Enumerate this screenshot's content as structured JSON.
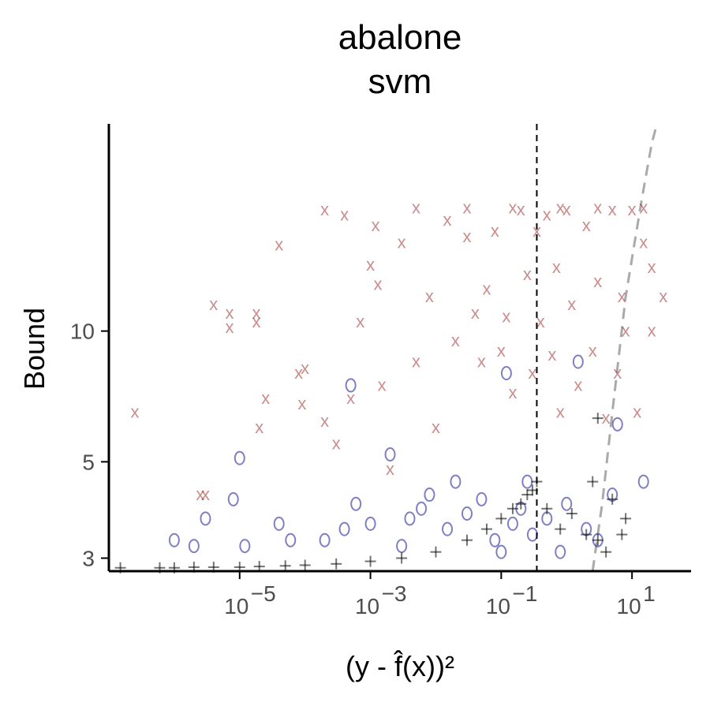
{
  "chart_data": {
    "type": "scatter",
    "title": "abalone",
    "subtitle": "svm",
    "xlabel": "(y - f̂(x))²",
    "ylabel": "Bound",
    "x_scale": "log10",
    "y_scale": "log",
    "xlim": [
      1e-07,
      80
    ],
    "ylim": [
      2.8,
      30
    ],
    "x_ticks": [
      1e-05,
      0.001,
      0.1,
      10
    ],
    "x_tick_labels": [
      "10",
      "10",
      "10",
      "10"
    ],
    "x_tick_exponents": [
      "−5",
      "−3",
      "−1",
      "1"
    ],
    "y_ticks": [
      3,
      5,
      10
    ],
    "y_tick_labels": [
      "3",
      "5",
      "10"
    ],
    "grid": false,
    "legend": "none",
    "reference_lines": [
      {
        "kind": "vertical",
        "x": 0.35,
        "style": "dashed",
        "color": "#000000"
      },
      {
        "kind": "curve",
        "style": "dashed",
        "color": "#aaaaaa",
        "points": [
          [
            2.5,
            2.8
          ],
          [
            3.5,
            4.0
          ],
          [
            5.0,
            6.5
          ],
          [
            8.0,
            12
          ],
          [
            14,
            20
          ],
          [
            20,
            27
          ],
          [
            24,
            30
          ]
        ]
      }
    ],
    "series": [
      {
        "marker": "x",
        "color": "#8b0000",
        "points": [
          [
            2.5e-07,
            6.5
          ],
          [
            4e-06,
            11.5
          ],
          [
            7e-06,
            10.2
          ],
          [
            7e-06,
            11
          ],
          [
            1.8e-05,
            11
          ],
          [
            1.8e-05,
            10.5
          ],
          [
            4e-05,
            15.8
          ],
          [
            8e-05,
            8
          ],
          [
            9e-05,
            6.8
          ],
          [
            2.5e-06,
            4.2
          ],
          [
            3e-06,
            4.2
          ],
          [
            2e-05,
            6
          ],
          [
            2.5e-05,
            7
          ],
          [
            0.0001,
            8.2
          ],
          [
            0.0002,
            6.2
          ],
          [
            0.0003,
            5.5
          ],
          [
            0.0005,
            7
          ],
          [
            0.0007,
            10.5
          ],
          [
            0.001,
            14.2
          ],
          [
            0.0013,
            12.8
          ],
          [
            0.0015,
            7.5
          ],
          [
            0.002,
            4.8
          ],
          [
            0.003,
            16
          ],
          [
            0.005,
            8.5
          ],
          [
            0.008,
            12
          ],
          [
            0.01,
            6
          ],
          [
            0.015,
            18
          ],
          [
            0.02,
            9.5
          ],
          [
            0.03,
            16.5
          ],
          [
            0.04,
            11
          ],
          [
            0.05,
            8.5
          ],
          [
            0.06,
            12.5
          ],
          [
            0.08,
            17
          ],
          [
            0.1,
            9
          ],
          [
            0.12,
            10.8
          ],
          [
            0.15,
            7.2
          ],
          [
            0.2,
            19
          ],
          [
            0.25,
            13.5
          ],
          [
            0.3,
            8
          ],
          [
            0.35,
            17
          ],
          [
            0.4,
            10.5
          ],
          [
            0.5,
            18.5
          ],
          [
            0.6,
            8.8
          ],
          [
            0.7,
            14
          ],
          [
            0.8,
            6.5
          ],
          [
            1.0,
            19
          ],
          [
            1.2,
            11.5
          ],
          [
            1.5,
            7.5
          ],
          [
            2,
            17.5
          ],
          [
            2.5,
            9
          ],
          [
            3,
            13
          ],
          [
            4,
            6.3
          ],
          [
            5,
            19
          ],
          [
            6,
            8
          ],
          [
            7,
            12
          ],
          [
            8,
            10
          ],
          [
            10,
            19
          ],
          [
            12,
            6.5
          ],
          [
            15,
            16
          ],
          [
            20,
            10
          ],
          [
            30,
            12
          ],
          [
            0.0002,
            19
          ],
          [
            0.0004,
            18.5
          ],
          [
            0.0012,
            17.5
          ],
          [
            0.005,
            19.2
          ],
          [
            0.03,
            19.2
          ],
          [
            0.15,
            19.2
          ],
          [
            0.8,
            19.2
          ],
          [
            3,
            19.2
          ],
          [
            15,
            19.2
          ],
          [
            20,
            14
          ]
        ]
      },
      {
        "marker": "o",
        "color": "#00008b",
        "points": [
          [
            1e-06,
            3.3
          ],
          [
            2e-06,
            3.2
          ],
          [
            3e-06,
            3.7
          ],
          [
            8e-06,
            4.1
          ],
          [
            1e-05,
            5.1
          ],
          [
            1.2e-05,
            3.2
          ],
          [
            4e-05,
            3.6
          ],
          [
            6e-05,
            3.3
          ],
          [
            0.0002,
            3.3
          ],
          [
            0.0004,
            3.5
          ],
          [
            0.0006,
            4.0
          ],
          [
            0.001,
            3.6
          ],
          [
            0.002,
            5.2
          ],
          [
            0.004,
            3.7
          ],
          [
            0.008,
            4.2
          ],
          [
            0.015,
            3.5
          ],
          [
            0.02,
            4.5
          ],
          [
            0.03,
            3.8
          ],
          [
            0.05,
            4.1
          ],
          [
            0.08,
            3.3
          ],
          [
            0.1,
            3.1
          ],
          [
            0.12,
            8.0
          ],
          [
            0.15,
            3.6
          ],
          [
            0.2,
            3.9
          ],
          [
            0.25,
            4.5
          ],
          [
            0.3,
            3.4
          ],
          [
            0.5,
            3.7
          ],
          [
            0.8,
            3.1
          ],
          [
            1.0,
            4.0
          ],
          [
            1.5,
            8.5
          ],
          [
            2,
            3.5
          ],
          [
            3,
            3.3
          ],
          [
            5,
            4.2
          ],
          [
            6,
            6.1
          ],
          [
            15,
            4.5
          ],
          [
            0.0005,
            7.5
          ],
          [
            0.003,
            3.2
          ],
          [
            0.006,
            3.9
          ]
        ]
      },
      {
        "marker": "+",
        "color": "#000000",
        "points": [
          [
            1.5e-07,
            2.85
          ],
          [
            6e-07,
            2.85
          ],
          [
            1e-06,
            2.85
          ],
          [
            2e-06,
            2.86
          ],
          [
            4e-06,
            2.86
          ],
          [
            1e-05,
            2.86
          ],
          [
            2e-05,
            2.87
          ],
          [
            5e-05,
            2.88
          ],
          [
            0.0001,
            2.89
          ],
          [
            0.0003,
            2.91
          ],
          [
            0.001,
            2.95
          ],
          [
            0.003,
            3.0
          ],
          [
            0.01,
            3.1
          ],
          [
            0.03,
            3.3
          ],
          [
            0.06,
            3.5
          ],
          [
            0.1,
            3.7
          ],
          [
            0.15,
            3.9
          ],
          [
            0.2,
            4.0
          ],
          [
            0.25,
            4.2
          ],
          [
            0.3,
            4.3
          ],
          [
            0.35,
            4.5
          ],
          [
            0.5,
            3.9
          ],
          [
            0.8,
            3.5
          ],
          [
            1.2,
            3.8
          ],
          [
            2,
            3.4
          ],
          [
            3,
            3.3
          ],
          [
            4,
            3.1
          ],
          [
            5,
            4.1
          ],
          [
            7,
            3.4
          ],
          [
            8,
            3.7
          ],
          [
            3,
            6.3
          ],
          [
            2.5,
            4.5
          ]
        ]
      }
    ]
  }
}
